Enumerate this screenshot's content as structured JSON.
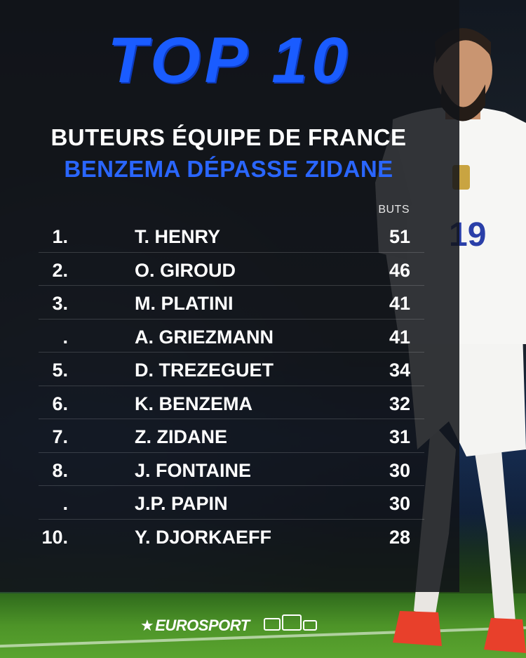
{
  "heading": "TOP 10",
  "subtitle": "BUTEURS ÉQUIPE DE FRANCE",
  "headline": "BENZEMA DÉPASSE ZIDANE",
  "column_header": "BUTS",
  "rows": [
    {
      "rank": "1.",
      "name": "T. HENRY",
      "goals": "51"
    },
    {
      "rank": "2.",
      "name": "O. GIROUD",
      "goals": "46"
    },
    {
      "rank": "3.",
      "name": "M. PLATINI",
      "goals": "41"
    },
    {
      "rank": ".",
      "name": "A. GRIEZMANN",
      "goals": "41"
    },
    {
      "rank": "5.",
      "name": "D. TREZEGUET",
      "goals": "34"
    },
    {
      "rank": "6.",
      "name": "K. BENZEMA",
      "goals": "32"
    },
    {
      "rank": "7.",
      "name": "Z. ZIDANE",
      "goals": "31"
    },
    {
      "rank": "8.",
      "name": "J. FONTAINE",
      "goals": "30"
    },
    {
      "rank": ".",
      "name": "J.P. PAPIN",
      "goals": "30"
    },
    {
      "rank": "10.",
      "name": "Y. DJORKAEFF",
      "goals": "28"
    }
  ],
  "brand": "EUROSPORT",
  "jersey_number": "19",
  "colors": {
    "accent_blue": "#1a5cff",
    "text": "#ffffff",
    "panel": "#121418"
  }
}
